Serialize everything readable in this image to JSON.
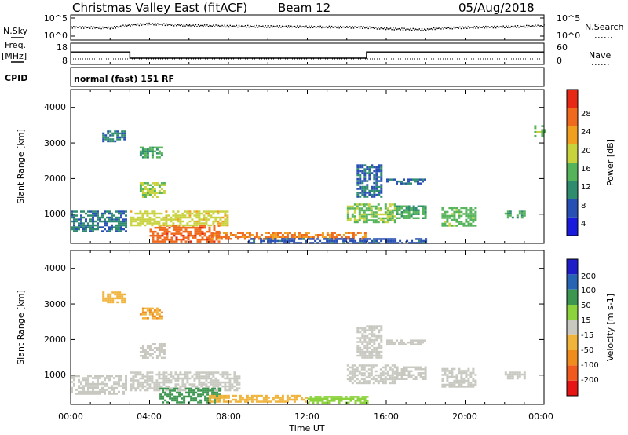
{
  "header": {
    "station": "Christmas Valley East (fitACF)",
    "beam": "Beam 12",
    "date": "05/Aug/2018"
  },
  "left_labels": {
    "nsky": "N.Sky",
    "freq": "Freq.",
    "freq_unit": "[MHz]",
    "cpid": "CPID"
  },
  "right_labels": {
    "nsearch": "N.Search",
    "nave": "Nave"
  },
  "cpid_text": "normal (fast) 151 RF",
  "noise_axis": {
    "left_ticks": [
      "10^5",
      "10^0"
    ],
    "right_ticks": [
      "10^5",
      "10^0"
    ]
  },
  "freq_axis": {
    "left_ticks": [
      "18",
      "8"
    ],
    "right_ticks": [
      "60",
      "0"
    ]
  },
  "colors": {
    "power": [
      "#1a1adc",
      "#2850b4",
      "#2f8c6e",
      "#55b45a",
      "#c8d23c",
      "#f0a01e",
      "#f06a1e",
      "#e62814"
    ],
    "velocity": [
      "#e61414",
      "#f05a1e",
      "#f08c1e",
      "#f0b43c",
      "#c8c8c0",
      "#8cd23c",
      "#3c9650",
      "#2864b4",
      "#1e1ec8"
    ],
    "sky_noise": "#000000"
  },
  "chart_data": [
    {
      "type": "line",
      "title": "N.Sky / N.Search",
      "x": [
        "00:00",
        "02:00",
        "03:00",
        "04:00",
        "06:00",
        "08:00",
        "10:00",
        "12:00",
        "14:00",
        "15:00",
        "16:00",
        "18:00",
        "18:30",
        "20:00",
        "22:00",
        "24:00"
      ],
      "series": [
        {
          "name": "N.Sky",
          "values": [
            2.6,
            2.4,
            3.2,
            3.5,
            3.1,
            2.9,
            2.8,
            2.7,
            2.6,
            2.5,
            2.2,
            1.9,
            2.3,
            2.5,
            2.7,
            3.0
          ]
        }
      ],
      "ylim": [
        0,
        5
      ],
      "log_scale": true
    },
    {
      "type": "line",
      "title": "Freq. / Nave",
      "x": [
        "00:00",
        "03:00",
        "15:00",
        "18:30",
        "24:00"
      ],
      "series": [
        {
          "name": "Freq.",
          "values": [
            14.4,
            10.5,
            14.4,
            14.4,
            14.4
          ]
        },
        {
          "name": "Nave",
          "values": [
            18,
            18,
            18,
            18,
            18
          ]
        }
      ],
      "ylim": [
        8,
        18
      ],
      "right_ylim": [
        0,
        60
      ]
    },
    {
      "type": "heatmap",
      "title": "Power",
      "xlabel": "",
      "ylabel": "Slant Range [km]",
      "colorbar_label": "Power [dB]",
      "colorbar_ticks": [
        "28",
        "24",
        "20",
        "16",
        "12",
        "8",
        "4"
      ],
      "y_ticks": [
        "4000",
        "3000",
        "2000",
        "1000"
      ],
      "x": [
        "00:00",
        "04:00",
        "08:00",
        "12:00",
        "16:00",
        "20:00",
        "00:00"
      ],
      "ylim": [
        180,
        4500
      ],
      "patches": [
        {
          "t": [
            4.0,
            7.5
          ],
          "r": [
            230,
            700
          ],
          "value": 28
        },
        {
          "t": [
            7.0,
            15.0
          ],
          "r": [
            330,
            500
          ],
          "value": 26
        },
        {
          "t": [
            3.0,
            8.0
          ],
          "r": [
            700,
            1100
          ],
          "value": 20
        },
        {
          "t": [
            0.0,
            2.8
          ],
          "r": [
            500,
            1100
          ],
          "value": 10
        },
        {
          "t": [
            3.5,
            4.8
          ],
          "r": [
            1500,
            1900
          ],
          "value": 18
        },
        {
          "t": [
            3.5,
            4.6
          ],
          "r": [
            2600,
            2900
          ],
          "value": 14
        },
        {
          "t": [
            1.6,
            2.7
          ],
          "r": [
            3050,
            3350
          ],
          "value": 10
        },
        {
          "t": [
            14.0,
            16.5
          ],
          "r": [
            800,
            1300
          ],
          "value": 17
        },
        {
          "t": [
            16.5,
            18.0
          ],
          "r": [
            900,
            1250
          ],
          "value": 14
        },
        {
          "t": [
            18.8,
            20.5
          ],
          "r": [
            700,
            1200
          ],
          "value": 16
        },
        {
          "t": [
            14.5,
            15.8
          ],
          "r": [
            1500,
            2400
          ],
          "value": 9
        },
        {
          "t": [
            16.0,
            18.0
          ],
          "r": [
            1850,
            2000
          ],
          "value": 9
        },
        {
          "t": [
            22.0,
            23.0
          ],
          "r": [
            900,
            1100
          ],
          "value": 14
        },
        {
          "t": [
            23.5,
            24.0
          ],
          "r": [
            3200,
            3500
          ],
          "value": 16
        },
        {
          "t": [
            9.0,
            18.0
          ],
          "r": [
            200,
            330
          ],
          "value": 8
        }
      ]
    },
    {
      "type": "heatmap",
      "title": "Velocity",
      "xlabel": "Time UT",
      "ylabel": "Slant Range [km]",
      "colorbar_label": "Velocity [m s-1]",
      "colorbar_ticks": [
        "200",
        "100",
        "50",
        "15",
        "-15",
        "-50",
        "-100",
        "-200"
      ],
      "y_ticks": [
        "4000",
        "3000",
        "2000",
        "1000"
      ],
      "x": [
        "00:00",
        "04:00",
        "08:00",
        "12:00",
        "16:00",
        "20:00",
        "00:00"
      ],
      "ylim": [
        180,
        4500
      ],
      "patches": [
        {
          "t": [
            0.0,
            2.8
          ],
          "r": [
            500,
            1000
          ],
          "value": 0
        },
        {
          "t": [
            3.0,
            8.5
          ],
          "r": [
            600,
            1100
          ],
          "value": 0
        },
        {
          "t": [
            4.5,
            7.5
          ],
          "r": [
            250,
            650
          ],
          "value": 70
        },
        {
          "t": [
            7.0,
            12.0
          ],
          "r": [
            250,
            450
          ],
          "value": -40
        },
        {
          "t": [
            12.0,
            15.0
          ],
          "r": [
            250,
            420
          ],
          "value": 40
        },
        {
          "t": [
            3.5,
            4.8
          ],
          "r": [
            1500,
            1900
          ],
          "value": 0
        },
        {
          "t": [
            3.5,
            4.6
          ],
          "r": [
            2600,
            2900
          ],
          "value": -50
        },
        {
          "t": [
            1.6,
            2.7
          ],
          "r": [
            3050,
            3350
          ],
          "value": -40
        },
        {
          "t": [
            14.0,
            16.5
          ],
          "r": [
            800,
            1300
          ],
          "value": 0
        },
        {
          "t": [
            16.5,
            18.0
          ],
          "r": [
            900,
            1250
          ],
          "value": 0
        },
        {
          "t": [
            18.8,
            20.5
          ],
          "r": [
            700,
            1200
          ],
          "value": 0
        },
        {
          "t": [
            14.5,
            15.8
          ],
          "r": [
            1500,
            2400
          ],
          "value": 0
        },
        {
          "t": [
            16.0,
            18.0
          ],
          "r": [
            1850,
            2000
          ],
          "value": 0
        },
        {
          "t": [
            22.0,
            23.0
          ],
          "r": [
            900,
            1100
          ],
          "value": 0
        }
      ]
    }
  ],
  "time_axis_label": "Time UT"
}
